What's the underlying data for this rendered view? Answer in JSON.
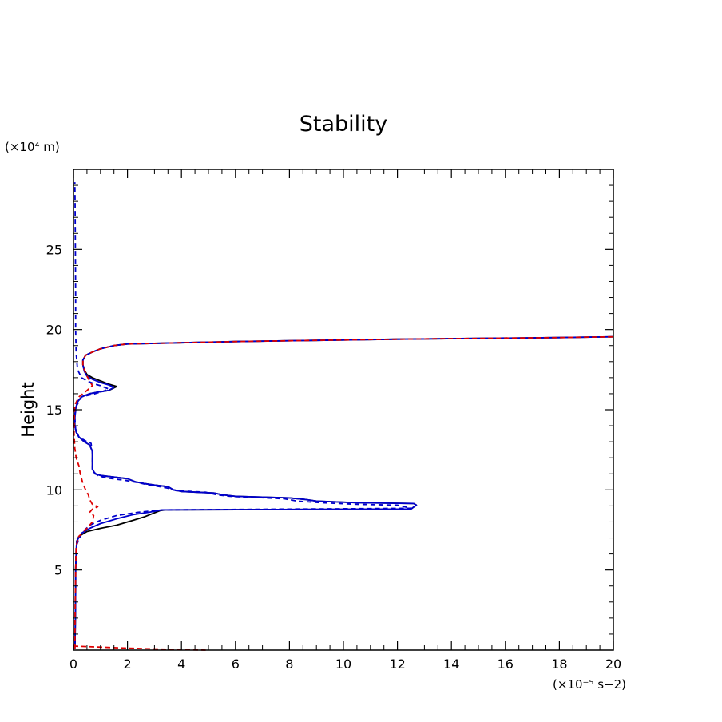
{
  "chart_data": {
    "type": "line",
    "title": "Stability",
    "xlabel": "",
    "ylabel": "Height",
    "x_unit_label": "(×10⁻⁵ s−2)",
    "y_unit_label": "(×10⁴ m)",
    "xlim": [
      0,
      20
    ],
    "ylim": [
      0,
      30
    ],
    "x_ticks": [
      0,
      2,
      4,
      6,
      8,
      10,
      12,
      14,
      16,
      18,
      20
    ],
    "y_ticks": [
      5,
      10,
      15,
      20,
      25
    ],
    "grid": false,
    "legend": "none",
    "series": [
      {
        "color": "#000000",
        "style": "solid",
        "points": [
          [
            0.05,
            0.1
          ],
          [
            0.06,
            0.5
          ],
          [
            0.07,
            2
          ],
          [
            0.08,
            4
          ],
          [
            0.08,
            5
          ],
          [
            0.1,
            6
          ],
          [
            0.12,
            6.8
          ],
          [
            0.2,
            7.1
          ],
          [
            0.5,
            7.4
          ],
          [
            1.0,
            7.6
          ],
          [
            1.6,
            7.8
          ],
          [
            2.2,
            8.1
          ],
          [
            2.6,
            8.3
          ],
          [
            2.9,
            8.5
          ],
          [
            3.2,
            8.7
          ],
          [
            3.4,
            8.75
          ],
          [
            12.5,
            8.8
          ],
          [
            12.7,
            9.05
          ],
          [
            12.6,
            9.15
          ],
          [
            10.5,
            9.2
          ],
          [
            9.0,
            9.3
          ],
          [
            8.6,
            9.4
          ],
          [
            8.0,
            9.5
          ],
          [
            6.0,
            9.6
          ],
          [
            5.5,
            9.7
          ],
          [
            5.2,
            9.8
          ],
          [
            4.0,
            9.9
          ],
          [
            3.7,
            10.0
          ],
          [
            3.6,
            10.1
          ],
          [
            3.5,
            10.2
          ],
          [
            3.0,
            10.3
          ],
          [
            2.6,
            10.4
          ],
          [
            2.3,
            10.5
          ],
          [
            2.0,
            10.7
          ],
          [
            1.5,
            10.8
          ],
          [
            1.0,
            10.9
          ],
          [
            0.8,
            11.0
          ],
          [
            0.7,
            11.3
          ],
          [
            0.7,
            11.8
          ],
          [
            0.7,
            12.4
          ],
          [
            0.6,
            12.8
          ],
          [
            0.4,
            13.0
          ],
          [
            0.2,
            13.3
          ],
          [
            0.1,
            13.6
          ],
          [
            0.05,
            14.0
          ],
          [
            0.05,
            14.5
          ],
          [
            0.07,
            15.0
          ],
          [
            0.15,
            15.5
          ],
          [
            0.3,
            15.8
          ],
          [
            0.6,
            16.0
          ],
          [
            0.9,
            16.1
          ],
          [
            1.3,
            16.2
          ],
          [
            1.6,
            16.45
          ],
          [
            1.3,
            16.6
          ],
          [
            1.0,
            16.8
          ],
          [
            0.7,
            17.0
          ],
          [
            0.5,
            17.2
          ],
          [
            0.4,
            17.5
          ],
          [
            0.35,
            17.8
          ],
          [
            0.35,
            18.1
          ],
          [
            0.45,
            18.4
          ],
          [
            0.7,
            18.6
          ],
          [
            1.0,
            18.8
          ],
          [
            1.5,
            19.0
          ],
          [
            2.0,
            19.1
          ],
          [
            6.0,
            19.25
          ],
          [
            12.0,
            19.4
          ],
          [
            18.0,
            19.5
          ],
          [
            20.0,
            19.55
          ]
        ]
      },
      {
        "color": "#0000cc",
        "style": "solid",
        "points": [
          [
            0.05,
            0.1
          ],
          [
            0.06,
            0.5
          ],
          [
            0.07,
            2
          ],
          [
            0.08,
            4
          ],
          [
            0.08,
            5
          ],
          [
            0.1,
            6
          ],
          [
            0.12,
            6.8
          ],
          [
            0.3,
            7.3
          ],
          [
            0.6,
            7.6
          ],
          [
            1.0,
            7.9
          ],
          [
            1.6,
            8.2
          ],
          [
            2.2,
            8.45
          ],
          [
            2.8,
            8.6
          ],
          [
            3.3,
            8.75
          ],
          [
            12.5,
            8.8
          ],
          [
            12.7,
            9.05
          ],
          [
            12.6,
            9.15
          ],
          [
            10.5,
            9.2
          ],
          [
            9.0,
            9.3
          ],
          [
            8.6,
            9.4
          ],
          [
            8.0,
            9.5
          ],
          [
            6.0,
            9.6
          ],
          [
            5.5,
            9.7
          ],
          [
            5.2,
            9.8
          ],
          [
            4.0,
            9.9
          ],
          [
            3.7,
            10.0
          ],
          [
            3.6,
            10.1
          ],
          [
            3.5,
            10.2
          ],
          [
            3.0,
            10.3
          ],
          [
            2.6,
            10.4
          ],
          [
            2.3,
            10.5
          ],
          [
            2.0,
            10.7
          ],
          [
            1.5,
            10.8
          ],
          [
            1.0,
            10.9
          ],
          [
            0.8,
            11.0
          ],
          [
            0.7,
            11.3
          ],
          [
            0.7,
            11.8
          ],
          [
            0.7,
            12.4
          ],
          [
            0.6,
            12.8
          ],
          [
            0.4,
            13.0
          ],
          [
            0.2,
            13.3
          ],
          [
            0.1,
            13.6
          ],
          [
            0.05,
            14.0
          ],
          [
            0.05,
            14.5
          ],
          [
            0.07,
            15.0
          ],
          [
            0.15,
            15.5
          ],
          [
            0.3,
            15.8
          ],
          [
            0.6,
            16.0
          ],
          [
            0.9,
            16.1
          ],
          [
            1.3,
            16.2
          ],
          [
            1.5,
            16.4
          ],
          [
            1.3,
            16.55
          ],
          [
            1.0,
            16.7
          ],
          [
            0.7,
            16.9
          ],
          [
            0.5,
            17.1
          ],
          [
            0.4,
            17.4
          ],
          [
            0.35,
            17.8
          ],
          [
            0.35,
            18.1
          ],
          [
            0.45,
            18.4
          ],
          [
            0.7,
            18.6
          ],
          [
            1.0,
            18.8
          ],
          [
            1.5,
            19.0
          ],
          [
            2.0,
            19.1
          ],
          [
            6.0,
            19.25
          ],
          [
            12.0,
            19.4
          ],
          [
            18.0,
            19.5
          ],
          [
            20.0,
            19.55
          ]
        ]
      },
      {
        "color": "#0000cc",
        "style": "dashed",
        "points": [
          [
            0.05,
            0.1
          ],
          [
            0.06,
            2
          ],
          [
            0.08,
            5
          ],
          [
            0.1,
            6.5
          ],
          [
            0.3,
            7.3
          ],
          [
            0.6,
            7.8
          ],
          [
            1.0,
            8.1
          ],
          [
            1.6,
            8.4
          ],
          [
            2.4,
            8.6
          ],
          [
            3.3,
            8.75
          ],
          [
            12.5,
            8.85
          ],
          [
            12.0,
            9.05
          ],
          [
            10.5,
            9.1
          ],
          [
            9.2,
            9.2
          ],
          [
            8.3,
            9.3
          ],
          [
            7.8,
            9.45
          ],
          [
            5.8,
            9.6
          ],
          [
            5.3,
            9.7
          ],
          [
            4.9,
            9.85
          ],
          [
            3.8,
            9.95
          ],
          [
            3.5,
            10.1
          ],
          [
            3.2,
            10.2
          ],
          [
            2.8,
            10.3
          ],
          [
            2.4,
            10.45
          ],
          [
            1.9,
            10.6
          ],
          [
            1.2,
            10.75
          ],
          [
            0.9,
            10.9
          ],
          [
            0.7,
            11.2
          ],
          [
            0.7,
            11.7
          ],
          [
            0.7,
            12.3
          ],
          [
            0.65,
            12.9
          ],
          [
            0.5,
            13.0
          ],
          [
            0.2,
            13.3
          ],
          [
            0.08,
            13.8
          ],
          [
            0.05,
            14.5
          ],
          [
            0.1,
            15.2
          ],
          [
            0.3,
            15.8
          ],
          [
            0.8,
            16.0
          ],
          [
            1.1,
            16.15
          ],
          [
            1.3,
            16.3
          ],
          [
            1.0,
            16.5
          ],
          [
            0.8,
            16.6
          ],
          [
            0.5,
            16.8
          ],
          [
            0.3,
            17.0
          ],
          [
            0.15,
            17.5
          ],
          [
            0.1,
            18.5
          ],
          [
            0.08,
            20
          ],
          [
            0.08,
            22
          ],
          [
            0.07,
            25
          ],
          [
            0.06,
            28
          ],
          [
            0.05,
            29.2
          ]
        ]
      },
      {
        "color": "#dd0000",
        "style": "dashed",
        "points": [
          [
            0.05,
            0.1
          ],
          [
            0.06,
            2
          ],
          [
            0.08,
            5
          ],
          [
            0.1,
            6.5
          ],
          [
            0.2,
            7.1
          ],
          [
            0.5,
            7.6
          ],
          [
            0.7,
            8.0
          ],
          [
            0.75,
            8.4
          ],
          [
            0.6,
            8.6
          ],
          [
            0.7,
            8.8
          ],
          [
            0.9,
            8.95
          ],
          [
            0.7,
            9.1
          ],
          [
            0.6,
            9.4
          ],
          [
            0.55,
            9.7
          ],
          [
            0.45,
            10.0
          ],
          [
            0.35,
            10.4
          ],
          [
            0.25,
            11.0
          ],
          [
            0.2,
            11.5
          ],
          [
            0.1,
            12.0
          ],
          [
            0.05,
            12.6
          ],
          [
            0.02,
            13.5
          ],
          [
            0.03,
            14.5
          ],
          [
            0.05,
            15.3
          ],
          [
            0.2,
            15.8
          ],
          [
            0.5,
            16.2
          ],
          [
            0.7,
            16.5
          ],
          [
            0.6,
            16.8
          ],
          [
            0.5,
            17.1
          ],
          [
            0.4,
            17.5
          ],
          [
            0.35,
            17.8
          ],
          [
            0.35,
            18.1
          ],
          [
            0.45,
            18.4
          ],
          [
            0.7,
            18.6
          ],
          [
            1.0,
            18.8
          ],
          [
            1.5,
            19.0
          ],
          [
            2.0,
            19.1
          ],
          [
            6.0,
            19.25
          ],
          [
            12.0,
            19.4
          ],
          [
            18.0,
            19.5
          ],
          [
            20.0,
            19.55
          ]
        ]
      },
      {
        "color": "#dd0000",
        "style": "dashed",
        "points": [
          [
            0.0,
            0.25
          ],
          [
            0.8,
            0.2
          ],
          [
            2.0,
            0.12
          ],
          [
            3.5,
            0.05
          ],
          [
            4.9,
            0.0
          ]
        ]
      }
    ]
  }
}
